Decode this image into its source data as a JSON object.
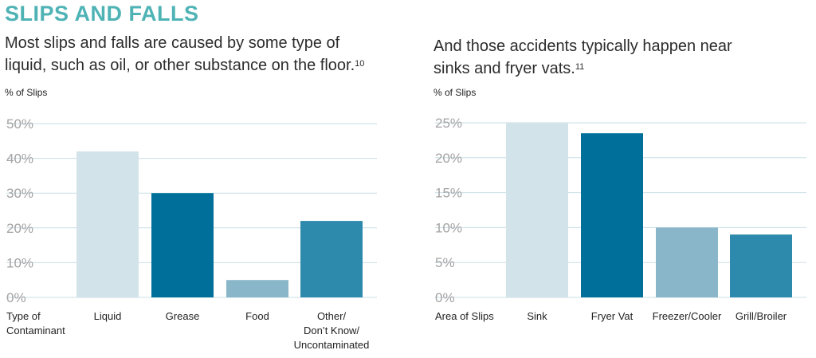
{
  "header": {
    "title": "SLIPS AND FALLS"
  },
  "chart_data": [
    {
      "type": "bar",
      "title": "Most slips and falls are caused by some type of liquid, such as oil, or other substance on the floor.",
      "footnote": "10",
      "ylabel": "% of Slips",
      "xlabel": [
        "Type of",
        "Contaminant"
      ],
      "categories": [
        [
          "Liquid"
        ],
        [
          "Grease"
        ],
        [
          "Food"
        ],
        [
          "Other/",
          "Don’t Know/",
          "Uncontaminated"
        ]
      ],
      "values": [
        42,
        30,
        5,
        22
      ],
      "colors": [
        "#d3e3ea",
        "#00709a",
        "#8ab6c9",
        "#2e8aac"
      ],
      "ylim": [
        0,
        50
      ],
      "yticks": [
        0,
        10,
        20,
        30,
        40,
        50
      ],
      "ytick_labels": [
        "0%",
        "10%",
        "20%",
        "30%",
        "40%",
        "50%"
      ],
      "grid": true
    },
    {
      "type": "bar",
      "title": "And those accidents typically happen near sinks and fryer vats.",
      "footnote": "11",
      "ylabel": "% of Slips",
      "xlabel": [
        "Area of Slips"
      ],
      "categories": [
        [
          "Sink"
        ],
        [
          "Fryer Vat"
        ],
        [
          "Freezer/Cooler"
        ],
        [
          "Grill/Broiler"
        ]
      ],
      "values": [
        25,
        23.5,
        10,
        9
      ],
      "colors": [
        "#d3e3ea",
        "#00709a",
        "#8ab6c9",
        "#2e8aac"
      ],
      "ylim": [
        0,
        25
      ],
      "yticks": [
        0,
        5,
        10,
        15,
        20,
        25
      ],
      "ytick_labels": [
        "0%",
        "5%",
        "10%",
        "15%",
        "20%",
        "25%"
      ],
      "grid": true
    }
  ]
}
